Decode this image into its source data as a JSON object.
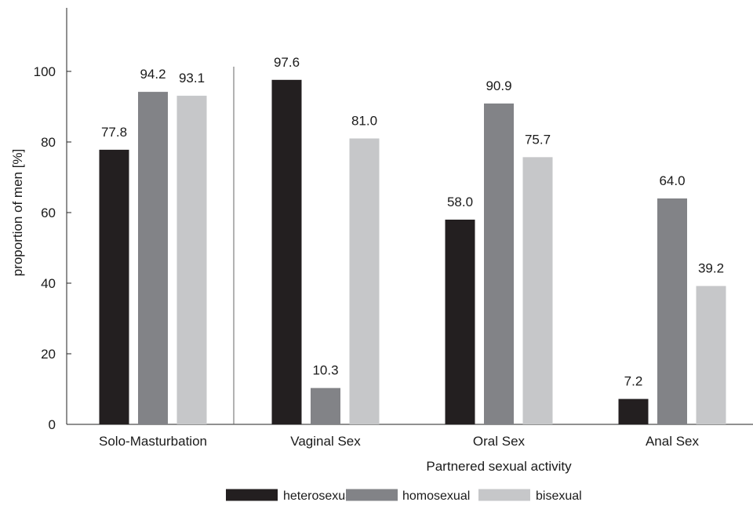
{
  "chart_data": {
    "type": "bar",
    "categories": [
      "Solo-Masturbation",
      "Vaginal Sex",
      "Oral Sex",
      "Anal Sex"
    ],
    "series": [
      {
        "name": "heterosexual",
        "color": "#231f20",
        "values": [
          77.8,
          97.6,
          58.0,
          7.2
        ],
        "labels": [
          "77.8",
          "97.6",
          "58.0",
          "7.2"
        ]
      },
      {
        "name": "homosexual",
        "color": "#828387",
        "values": [
          94.2,
          10.3,
          90.9,
          64.0
        ],
        "labels": [
          "94.2",
          "10.3",
          "90.9",
          "64.0"
        ]
      },
      {
        "name": "bisexual",
        "color": "#c6c7c9",
        "values": [
          93.1,
          81.0,
          75.7,
          39.2
        ],
        "labels": [
          "93.1",
          "81.0",
          "75.7",
          "39.2"
        ]
      }
    ],
    "xlabel": "Partnered sexual activity",
    "ylabel": "proportion of men [%]",
    "ylim": [
      0,
      100
    ],
    "yticks": [
      0,
      20,
      40,
      60,
      80,
      100
    ],
    "grid": false,
    "legend": "bottom-center",
    "separator_after_category": "Solo-Masturbation"
  }
}
